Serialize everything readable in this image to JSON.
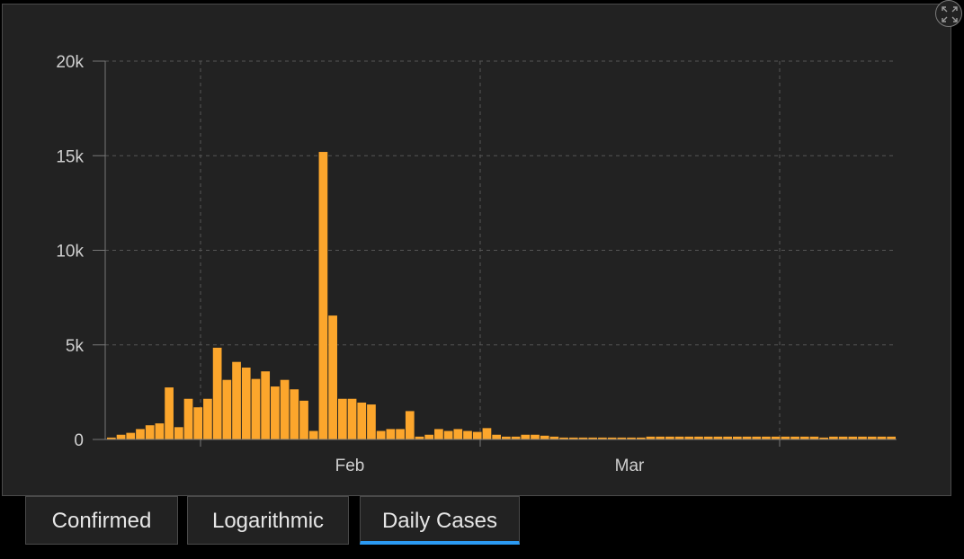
{
  "chart_data": {
    "type": "bar",
    "title": "",
    "xlabel": "",
    "ylabel": "",
    "ylim": [
      0,
      20000
    ],
    "y_ticks": [
      0,
      5000,
      10000,
      15000,
      20000
    ],
    "y_tick_labels": [
      "0",
      "5k",
      "10k",
      "15k",
      "20k"
    ],
    "x_ticks": [
      "Feb",
      "Mar"
    ],
    "grid": true,
    "bar_color": "#fca62c",
    "values": [
      100,
      250,
      350,
      550,
      750,
      850,
      2750,
      650,
      2150,
      1700,
      2150,
      4850,
      3150,
      4100,
      3800,
      3200,
      3600,
      2800,
      3150,
      2650,
      2050,
      450,
      15200,
      6550,
      2150,
      2150,
      1950,
      1850,
      450,
      550,
      550,
      1500,
      150,
      250,
      550,
      450,
      550,
      450,
      400,
      600,
      250,
      150,
      150,
      250,
      250,
      200,
      150,
      100,
      100,
      100,
      100,
      100,
      100,
      100,
      100,
      100,
      150,
      150,
      150,
      150,
      150,
      150,
      150,
      150,
      150,
      150,
      150,
      150,
      150,
      150,
      150,
      150,
      150,
      150,
      100,
      150,
      150,
      150,
      150,
      150,
      150,
      150
    ]
  },
  "colors": {
    "background": "#000000",
    "panel": "#222222",
    "grid": "#555555",
    "text": "#cfcfcf",
    "active_tab_underline": "#2b9af3"
  },
  "expand_icon": "expand-icon",
  "tabs": [
    {
      "label": "Confirmed",
      "active": false
    },
    {
      "label": "Logarithmic",
      "active": false
    },
    {
      "label": "Daily Cases",
      "active": true
    }
  ]
}
